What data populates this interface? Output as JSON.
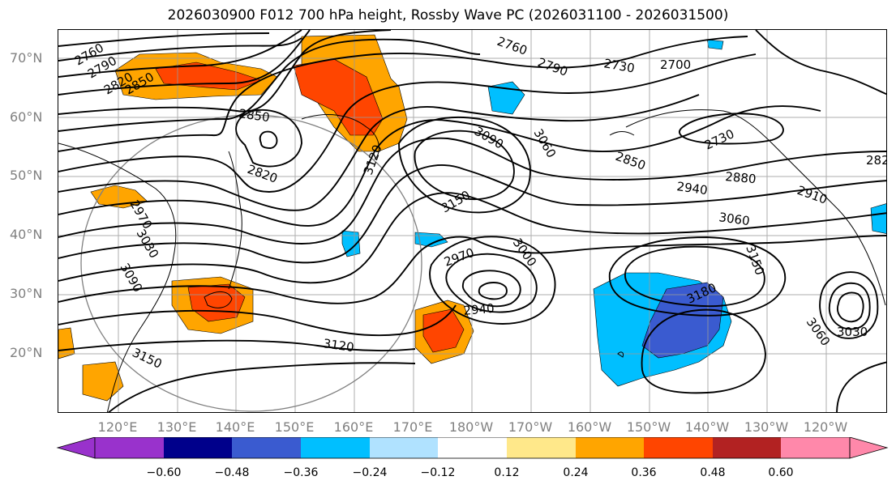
{
  "title": "2026030900 F012 700 hPa height, Rossby Wave PC (2026031100 - 2026031500)",
  "lat_labels": [
    "70°N",
    "60°N",
    "50°N",
    "40°N",
    "30°N",
    "20°N"
  ],
  "lon_labels": [
    "120°E",
    "130°E",
    "140°E",
    "150°E",
    "160°E",
    "170°E",
    "180°W",
    "170°W",
    "160°W",
    "150°W",
    "140°W",
    "130°W",
    "120°W"
  ],
  "contour_labels": [
    "2760",
    "2790",
    "2820",
    "2850",
    "2760",
    "2790",
    "2730",
    "2700",
    "2850",
    "3090",
    "3060",
    "2730",
    "2820",
    "3120",
    "2850",
    "2940",
    "2910",
    "2880",
    "3150",
    "3060",
    "2970",
    "3030",
    "3090",
    "3000",
    "2970",
    "3150",
    "3180",
    "2940",
    "3030",
    "3060",
    "3120",
    "3150",
    "282"
  ],
  "colorbar": {
    "ticks": [
      "−0.60",
      "−0.48",
      "−0.36",
      "−0.24",
      "−0.12",
      "0.12",
      "0.24",
      "0.36",
      "0.48",
      "0.60"
    ],
    "colors": [
      "#9932cc",
      "#00008b",
      "#3a5bd0",
      "#00bfff",
      "#b0e2ff",
      "#ffffff",
      "#ffe88a",
      "#ffa500",
      "#ff4500",
      "#b22222",
      "#ff88aa"
    ]
  }
}
